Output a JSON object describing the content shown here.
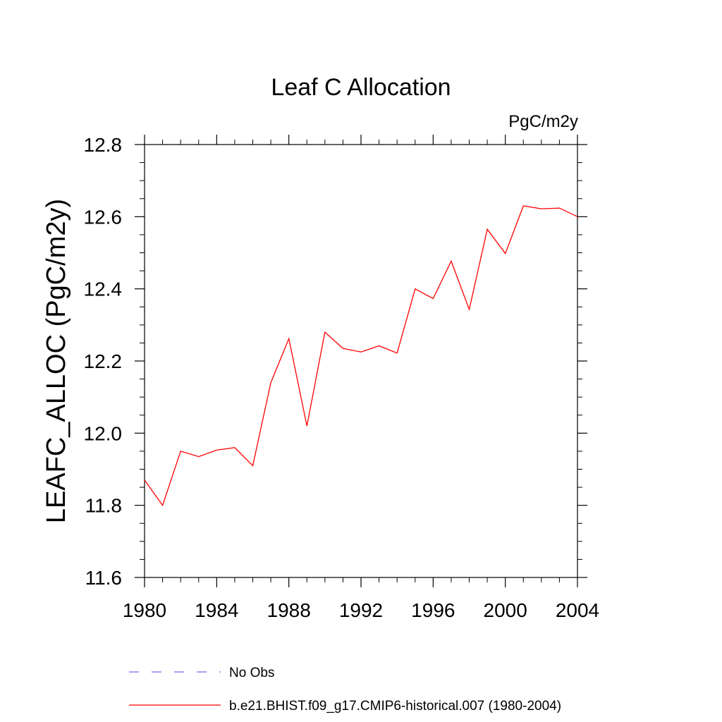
{
  "chart_data": {
    "type": "line",
    "title": "Leaf C Allocation",
    "units_label": "PgC/m2y",
    "xlabel": "",
    "ylabel": "LEAFC_ALLOC  (PgC/m2y)",
    "xlim": [
      1980,
      2004
    ],
    "ylim": [
      11.6,
      12.8
    ],
    "x_ticks": [
      "1980",
      "1984",
      "1988",
      "1992",
      "1996",
      "2000",
      "2004"
    ],
    "y_ticks": [
      "11.6",
      "11.8",
      "12.0",
      "12.2",
      "12.4",
      "12.6",
      "12.8"
    ],
    "grid": false,
    "legend_position": "bottom",
    "series": [
      {
        "name": "b.e21.BHIST.f09_g17.CMIP6-historical.007 (1980-2004)",
        "color": "#ff0000",
        "style": "solid",
        "x": [
          1980,
          1981,
          1982,
          1983,
          1984,
          1985,
          1986,
          1987,
          1988,
          1989,
          1990,
          1991,
          1992,
          1993,
          1994,
          1995,
          1996,
          1997,
          1998,
          1999,
          2000,
          2001,
          2002,
          2003,
          2004
        ],
        "values": [
          11.87,
          11.8,
          11.95,
          11.935,
          11.953,
          11.96,
          11.91,
          12.14,
          12.262,
          12.02,
          12.28,
          12.235,
          12.225,
          12.242,
          12.222,
          12.4,
          12.373,
          12.477,
          12.343,
          12.565,
          12.498,
          12.63,
          12.622,
          12.624,
          12.6
        ]
      }
    ],
    "legend": [
      {
        "name": "No Obs",
        "color": "#7b68ee",
        "style": "dashed"
      },
      {
        "name": "b.e21.BHIST.f09_g17.CMIP6-historical.007 (1980-2004)",
        "color": "#ff0000",
        "style": "solid"
      }
    ]
  }
}
